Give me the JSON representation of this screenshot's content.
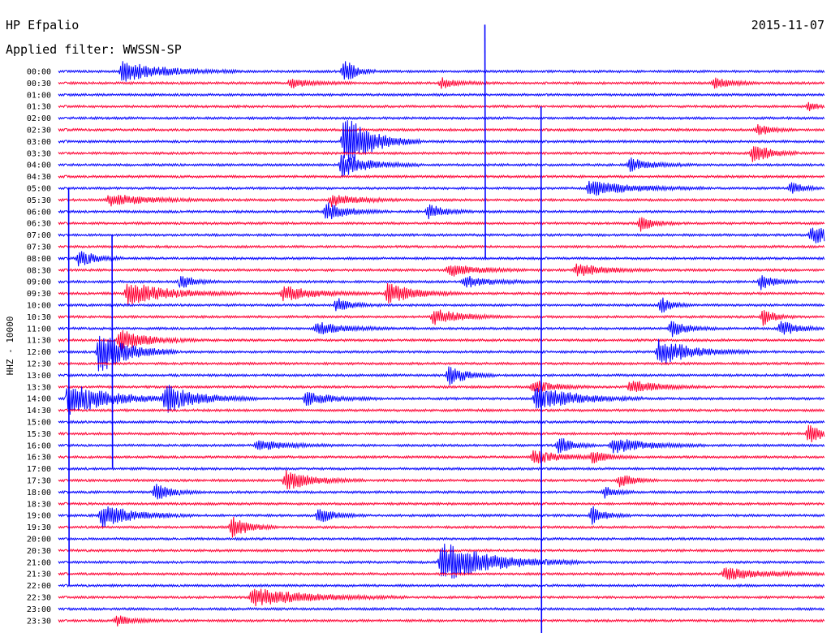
{
  "station": "HP Efpalio",
  "date": "2015-11-07",
  "filter_label": "Applied filter: WWSSN-SP",
  "side_label": "HHZ - 10000",
  "colors": {
    "blue": "#0000ff",
    "red": "#ff0033",
    "background": "#ffffff"
  },
  "chart_data": {
    "type": "helicorder",
    "title": "HP Efpalio",
    "subtitle": "Applied filter: WWSSN-SP",
    "date": "2015-11-07",
    "ylabel": "HHZ - 10000",
    "row_labels": [
      "00:00",
      "00:30",
      "01:00",
      "01:30",
      "02:00",
      "02:30",
      "03:00",
      "03:30",
      "04:00",
      "04:30",
      "05:00",
      "05:30",
      "06:00",
      "06:30",
      "07:00",
      "07:30",
      "08:00",
      "08:30",
      "09:00",
      "09:30",
      "10:00",
      "10:30",
      "11:00",
      "11:30",
      "12:00",
      "12:30",
      "13:00",
      "13:30",
      "14:00",
      "14:30",
      "15:00",
      "15:30",
      "16:00",
      "16:30",
      "17:00",
      "17:30",
      "18:00",
      "18:30",
      "19:00",
      "19:30",
      "20:00",
      "20:30",
      "21:00",
      "21:30",
      "22:00",
      "22:30",
      "23:00",
      "23:30"
    ],
    "trace_colors": [
      "blue",
      "red"
    ],
    "row_minutes": 30,
    "grid": false,
    "events": [
      {
        "row": 0,
        "minute": 2.5,
        "amp": 0.9,
        "dur": 1.5
      },
      {
        "row": 0,
        "minute": 11.2,
        "amp": 1.3,
        "dur": 0.4
      },
      {
        "row": 1,
        "minute": 9.1,
        "amp": 0.4,
        "dur": 0.8
      },
      {
        "row": 1,
        "minute": 15.0,
        "amp": 0.45,
        "dur": 0.6
      },
      {
        "row": 1,
        "minute": 25.7,
        "amp": 0.5,
        "dur": 0.6
      },
      {
        "row": 3,
        "minute": 29.4,
        "amp": 0.4,
        "dur": 0.3
      },
      {
        "row": 5,
        "minute": 27.4,
        "amp": 0.5,
        "dur": 0.5
      },
      {
        "row": 6,
        "minute": 11.2,
        "amp": 2.5,
        "dur": 1.0
      },
      {
        "row": 7,
        "minute": 27.2,
        "amp": 1.0,
        "dur": 0.6
      },
      {
        "row": 8,
        "minute": 11.1,
        "amp": 1.0,
        "dur": 1.0
      },
      {
        "row": 8,
        "minute": 22.4,
        "amp": 0.6,
        "dur": 0.8
      },
      {
        "row": 10,
        "minute": 20.8,
        "amp": 0.7,
        "dur": 1.5
      },
      {
        "row": 10,
        "minute": 28.7,
        "amp": 0.6,
        "dur": 0.4
      },
      {
        "row": 11,
        "minute": 2.0,
        "amp": 0.5,
        "dur": 1.5
      },
      {
        "row": 11,
        "minute": 10.7,
        "amp": 0.5,
        "dur": 1.0
      },
      {
        "row": 12,
        "minute": 10.5,
        "amp": 0.8,
        "dur": 0.8
      },
      {
        "row": 12,
        "minute": 14.5,
        "amp": 0.7,
        "dur": 0.6
      },
      {
        "row": 13,
        "minute": 22.8,
        "amp": 0.7,
        "dur": 0.5
      },
      {
        "row": 14,
        "minute": 29.5,
        "amp": 0.8,
        "dur": 1.0
      },
      {
        "row": 16,
        "minute": 0.8,
        "amp": 0.8,
        "dur": 0.6
      },
      {
        "row": 17,
        "minute": 15.3,
        "amp": 0.6,
        "dur": 1.0
      },
      {
        "row": 17,
        "minute": 20.3,
        "amp": 0.6,
        "dur": 1.0
      },
      {
        "row": 18,
        "minute": 4.8,
        "amp": 0.6,
        "dur": 0.5
      },
      {
        "row": 18,
        "minute": 15.9,
        "amp": 0.5,
        "dur": 1.0
      },
      {
        "row": 18,
        "minute": 27.5,
        "amp": 0.7,
        "dur": 0.5
      },
      {
        "row": 19,
        "minute": 2.7,
        "amp": 1.0,
        "dur": 1.5
      },
      {
        "row": 19,
        "minute": 8.8,
        "amp": 0.7,
        "dur": 1.2
      },
      {
        "row": 19,
        "minute": 12.9,
        "amp": 0.9,
        "dur": 1.0
      },
      {
        "row": 20,
        "minute": 10.9,
        "amp": 0.6,
        "dur": 0.6
      },
      {
        "row": 20,
        "minute": 23.6,
        "amp": 0.7,
        "dur": 0.4
      },
      {
        "row": 21,
        "minute": 14.7,
        "amp": 0.7,
        "dur": 1.0
      },
      {
        "row": 21,
        "minute": 27.6,
        "amp": 0.8,
        "dur": 0.4
      },
      {
        "row": 22,
        "minute": 10.1,
        "amp": 0.6,
        "dur": 1.0
      },
      {
        "row": 22,
        "minute": 24.0,
        "amp": 0.7,
        "dur": 0.6
      },
      {
        "row": 22,
        "minute": 28.3,
        "amp": 0.7,
        "dur": 0.6
      },
      {
        "row": 23,
        "minute": 2.4,
        "amp": 1.0,
        "dur": 1.0
      },
      {
        "row": 24,
        "minute": 1.6,
        "amp": 2.0,
        "dur": 1.0
      },
      {
        "row": 24,
        "minute": 23.5,
        "amp": 1.2,
        "dur": 1.2
      },
      {
        "row": 26,
        "minute": 15.3,
        "amp": 1.0,
        "dur": 0.6
      },
      {
        "row": 27,
        "minute": 18.6,
        "amp": 0.6,
        "dur": 0.8
      },
      {
        "row": 27,
        "minute": 22.4,
        "amp": 0.6,
        "dur": 1.0
      },
      {
        "row": 28,
        "minute": 0.4,
        "amp": 1.5,
        "dur": 1.5
      },
      {
        "row": 28,
        "minute": 4.2,
        "amp": 1.2,
        "dur": 1.2
      },
      {
        "row": 28,
        "minute": 9.7,
        "amp": 0.6,
        "dur": 1.0
      },
      {
        "row": 28,
        "minute": 18.7,
        "amp": 1.2,
        "dur": 1.4
      },
      {
        "row": 31,
        "minute": 29.4,
        "amp": 0.9,
        "dur": 0.5
      },
      {
        "row": 32,
        "minute": 7.8,
        "amp": 0.5,
        "dur": 1.0
      },
      {
        "row": 32,
        "minute": 19.6,
        "amp": 0.8,
        "dur": 0.5
      },
      {
        "row": 32,
        "minute": 21.7,
        "amp": 0.7,
        "dur": 1.2
      },
      {
        "row": 33,
        "minute": 18.6,
        "amp": 0.6,
        "dur": 1.0
      },
      {
        "row": 33,
        "minute": 20.9,
        "amp": 0.5,
        "dur": 0.6
      },
      {
        "row": 35,
        "minute": 8.9,
        "amp": 0.9,
        "dur": 1.0
      },
      {
        "row": 35,
        "minute": 22.0,
        "amp": 0.6,
        "dur": 0.5
      },
      {
        "row": 36,
        "minute": 3.8,
        "amp": 0.8,
        "dur": 0.6
      },
      {
        "row": 36,
        "minute": 21.4,
        "amp": 0.5,
        "dur": 0.4
      },
      {
        "row": 38,
        "minute": 1.7,
        "amp": 1.0,
        "dur": 1.2
      },
      {
        "row": 38,
        "minute": 10.2,
        "amp": 0.7,
        "dur": 0.6
      },
      {
        "row": 38,
        "minute": 20.9,
        "amp": 0.8,
        "dur": 0.5
      },
      {
        "row": 39,
        "minute": 6.8,
        "amp": 1.1,
        "dur": 0.6
      },
      {
        "row": 42,
        "minute": 15.0,
        "amp": 1.8,
        "dur": 1.8
      },
      {
        "row": 43,
        "minute": 26.1,
        "amp": 0.5,
        "dur": 1.5
      },
      {
        "row": 45,
        "minute": 7.6,
        "amp": 0.8,
        "dur": 2.0
      },
      {
        "row": 47,
        "minute": 2.3,
        "amp": 0.5,
        "dur": 0.6
      }
    ],
    "spikes": [
      {
        "row": 6,
        "minute": 16.7,
        "rows_up": 10,
        "rows_down": 10
      },
      {
        "row": 28,
        "minute": 18.9,
        "rows_up": 25,
        "rows_down": 25
      },
      {
        "row": 28,
        "minute": 0.4,
        "rows_up": 18,
        "rows_down": 16
      },
      {
        "row": 24,
        "minute": 2.1,
        "rows_up": 10,
        "rows_down": 10
      }
    ]
  }
}
